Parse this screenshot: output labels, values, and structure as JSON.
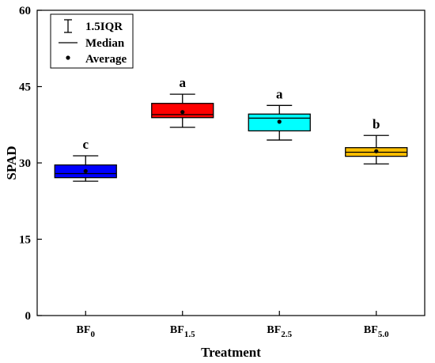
{
  "chart_data": {
    "type": "box",
    "xlabel": "Treatment",
    "ylabel": "SPAD",
    "ylim": [
      0,
      60
    ],
    "yticks": [
      "0",
      "15",
      "30",
      "45",
      "60"
    ],
    "legend": {
      "placement": "top-left",
      "items": [
        {
          "symbol": "whisker",
          "label": "1.5IQR"
        },
        {
          "symbol": "line",
          "label": "Median"
        },
        {
          "symbol": "dot",
          "label": "Average"
        }
      ]
    },
    "categories": [
      {
        "base": "BF",
        "sub": "0",
        "color": "#0000ff",
        "whisker_low": 26.4,
        "q1": 27.1,
        "median": 27.9,
        "q3": 29.6,
        "whisker_high": 31.4,
        "mean": 28.4,
        "letter": "c"
      },
      {
        "base": "BF",
        "sub": "1.5",
        "color": "#ff0000",
        "whisker_low": 37.0,
        "q1": 38.9,
        "median": 39.5,
        "q3": 41.7,
        "whisker_high": 43.5,
        "mean": 40.0,
        "letter": "a"
      },
      {
        "base": "BF",
        "sub": "2.5",
        "color": "#00ffff",
        "whisker_low": 34.5,
        "q1": 36.3,
        "median": 38.8,
        "q3": 39.6,
        "whisker_high": 41.3,
        "mean": 38.1,
        "letter": "a"
      },
      {
        "base": "BF",
        "sub": "5.0",
        "color": "#ffc000",
        "whisker_low": 29.8,
        "q1": 31.3,
        "median": 32.1,
        "q3": 33.0,
        "whisker_high": 35.4,
        "mean": 32.3,
        "letter": "b"
      }
    ]
  }
}
